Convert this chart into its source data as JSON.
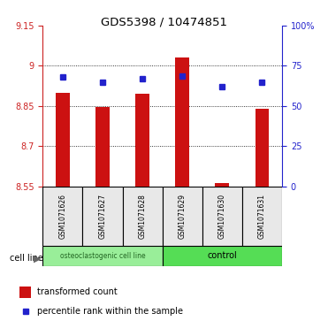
{
  "title": "GDS5398 / 10474851",
  "samples": [
    "GSM1071626",
    "GSM1071627",
    "GSM1071628",
    "GSM1071629",
    "GSM1071630",
    "GSM1071631"
  ],
  "red_values": [
    8.9,
    8.845,
    8.895,
    9.03,
    8.562,
    8.84
  ],
  "blue_values": [
    68.0,
    65.0,
    67.0,
    68.5,
    62.0,
    65.0
  ],
  "ylim_left": [
    8.55,
    9.15
  ],
  "ylim_right": [
    0,
    100
  ],
  "yticks_left": [
    8.55,
    8.7,
    8.85,
    9.0,
    9.15
  ],
  "yticks_right": [
    0,
    25,
    50,
    75,
    100
  ],
  "ytick_labels_left": [
    "8.55",
    "8.7",
    "8.85",
    "9",
    "9.15"
  ],
  "ytick_labels_right": [
    "0",
    "25",
    "50",
    "75",
    "100%"
  ],
  "group1_label": "osteoclastogenic cell line",
  "group2_label": "control",
  "cell_line_label": "cell line",
  "legend1": "transformed count",
  "legend2": "percentile rank within the sample",
  "bar_color": "#cc1111",
  "dot_color": "#2222cc",
  "base_value": 8.55,
  "group_colors": [
    "#99ee99",
    "#55dd55"
  ],
  "grid_color": "#000000",
  "bg_color": "#e8e8e8"
}
